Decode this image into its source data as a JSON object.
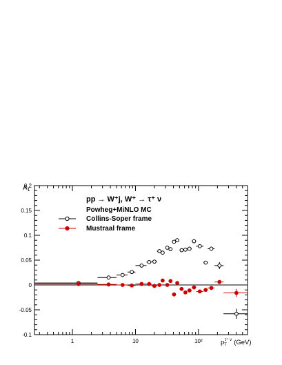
{
  "chart_data": {
    "type": "scatter",
    "x_scale": "log",
    "xlim": [
      0.25,
      600
    ],
    "ylim": [
      -0.1,
      0.2
    ],
    "ylabel_main": "A",
    "ylabel_sub": "1",
    "xlabel_main": "p",
    "xlabel_sub": "T",
    "xlabel_sup": "τ⁺ ν",
    "xlabel_unit": "(GeV)",
    "x_ticks": [
      {
        "value": 1,
        "label": "1"
      },
      {
        "value": 10,
        "label": "10"
      },
      {
        "value": 100,
        "label": "10²"
      }
    ],
    "y_ticks": [
      {
        "value": -0.1,
        "label": "-0.1"
      },
      {
        "value": -0.05,
        "label": "-0.05"
      },
      {
        "value": 0,
        "label": "0"
      },
      {
        "value": 0.05,
        "label": "0.05"
      },
      {
        "value": 0.1,
        "label": "0.1"
      },
      {
        "value": 0.15,
        "label": "0.15"
      },
      {
        "value": 0.2,
        "label": "0.2"
      }
    ],
    "process_label": "pp → W⁺j, W⁺ → τ⁺ ν",
    "generator_label": "Powheg+MiNLO MC",
    "legend_position": "top-left",
    "series": [
      {
        "name": "Collins-Soper frame",
        "color": "#000000",
        "marker": "open-circle",
        "points": [
          {
            "x": 1.25,
            "y": 0.004,
            "xlo": 0.25,
            "xhi": 2.5,
            "yerr": 0.001
          },
          {
            "x": 3.75,
            "y": 0.015,
            "xlo": 2.5,
            "xhi": 5,
            "yerr": 0.001
          },
          {
            "x": 6.25,
            "y": 0.02,
            "xlo": 5,
            "xhi": 7.5,
            "yerr": 0.001
          },
          {
            "x": 8.75,
            "y": 0.026,
            "xlo": 7.5,
            "xhi": 10,
            "yerr": 0.001
          },
          {
            "x": 12.5,
            "y": 0.039,
            "xlo": 10,
            "xhi": 15,
            "yerr": 0.002
          },
          {
            "x": 16.5,
            "y": 0.046,
            "xlo": 15,
            "xhi": 18,
            "yerr": 0.002
          },
          {
            "x": 20,
            "y": 0.047,
            "xlo": 18,
            "xhi": 22,
            "yerr": 0.002
          },
          {
            "x": 24,
            "y": 0.068,
            "xlo": 22,
            "xhi": 26,
            "yerr": 0.002
          },
          {
            "x": 27,
            "y": 0.065,
            "xlo": 26,
            "xhi": 28,
            "yerr": 0.002
          },
          {
            "x": 32,
            "y": 0.075,
            "xlo": 30,
            "xhi": 34,
            "yerr": 0.002
          },
          {
            "x": 36,
            "y": 0.072,
            "xlo": 34,
            "xhi": 38,
            "yerr": 0.002
          },
          {
            "x": 41,
            "y": 0.087,
            "xlo": 38,
            "xhi": 44,
            "yerr": 0.002
          },
          {
            "x": 46,
            "y": 0.09,
            "xlo": 44,
            "xhi": 48,
            "yerr": 0.002
          },
          {
            "x": 54,
            "y": 0.07,
            "xlo": 50,
            "xhi": 58,
            "yerr": 0.002
          },
          {
            "x": 62,
            "y": 0.071,
            "xlo": 58,
            "xhi": 66,
            "yerr": 0.002
          },
          {
            "x": 72,
            "y": 0.073,
            "xlo": 66,
            "xhi": 78,
            "yerr": 0.002
          },
          {
            "x": 85,
            "y": 0.088,
            "xlo": 78,
            "xhi": 92,
            "yerr": 0.003
          },
          {
            "x": 105,
            "y": 0.078,
            "xlo": 92,
            "xhi": 120,
            "yerr": 0.003
          },
          {
            "x": 130,
            "y": 0.045,
            "xlo": 120,
            "xhi": 140,
            "yerr": 0.003
          },
          {
            "x": 160,
            "y": 0.073,
            "xlo": 140,
            "xhi": 180,
            "yerr": 0.004
          },
          {
            "x": 215,
            "y": 0.039,
            "xlo": 180,
            "xhi": 250,
            "yerr": 0.007
          },
          {
            "x": 400,
            "y": -0.058,
            "xlo": 250,
            "xhi": 600,
            "yerr": 0.01
          }
        ]
      },
      {
        "name": "Mustraal frame",
        "color": "#cc0000",
        "marker": "filled-circle",
        "points": [
          {
            "x": 1.25,
            "y": 0.002,
            "xlo": 0.25,
            "xhi": 2.5,
            "yerr": 0.001
          },
          {
            "x": 3.75,
            "y": 0.001,
            "xlo": 2.5,
            "xhi": 5,
            "yerr": 0.001
          },
          {
            "x": 6.25,
            "y": 0.0,
            "xlo": 5,
            "xhi": 7.5,
            "yerr": 0.001
          },
          {
            "x": 8.75,
            "y": -0.001,
            "xlo": 7.5,
            "xhi": 10,
            "yerr": 0.001
          },
          {
            "x": 12.5,
            "y": 0.002,
            "xlo": 10,
            "xhi": 15,
            "yerr": 0.002
          },
          {
            "x": 16.5,
            "y": 0.002,
            "xlo": 15,
            "xhi": 18,
            "yerr": 0.002
          },
          {
            "x": 20,
            "y": -0.002,
            "xlo": 18,
            "xhi": 22,
            "yerr": 0.002
          },
          {
            "x": 24,
            "y": 0.0,
            "xlo": 22,
            "xhi": 26,
            "yerr": 0.002
          },
          {
            "x": 27,
            "y": 0.009,
            "xlo": 26,
            "xhi": 28,
            "yerr": 0.002
          },
          {
            "x": 32,
            "y": 0.0,
            "xlo": 30,
            "xhi": 34,
            "yerr": 0.002
          },
          {
            "x": 36,
            "y": 0.008,
            "xlo": 34,
            "xhi": 38,
            "yerr": 0.002
          },
          {
            "x": 41,
            "y": -0.019,
            "xlo": 38,
            "xhi": 44,
            "yerr": 0.002
          },
          {
            "x": 46,
            "y": 0.004,
            "xlo": 44,
            "xhi": 48,
            "yerr": 0.002
          },
          {
            "x": 54,
            "y": -0.008,
            "xlo": 50,
            "xhi": 58,
            "yerr": 0.002
          },
          {
            "x": 62,
            "y": -0.015,
            "xlo": 58,
            "xhi": 66,
            "yerr": 0.002
          },
          {
            "x": 72,
            "y": -0.011,
            "xlo": 66,
            "xhi": 78,
            "yerr": 0.002
          },
          {
            "x": 85,
            "y": -0.005,
            "xlo": 78,
            "xhi": 92,
            "yerr": 0.003
          },
          {
            "x": 105,
            "y": -0.013,
            "xlo": 92,
            "xhi": 120,
            "yerr": 0.003
          },
          {
            "x": 130,
            "y": -0.01,
            "xlo": 120,
            "xhi": 140,
            "yerr": 0.003
          },
          {
            "x": 160,
            "y": -0.006,
            "xlo": 140,
            "xhi": 180,
            "yerr": 0.004
          },
          {
            "x": 215,
            "y": 0.006,
            "xlo": 180,
            "xhi": 250,
            "yerr": 0.004
          },
          {
            "x": 400,
            "y": -0.016,
            "xlo": 250,
            "xhi": 600,
            "yerr": 0.008
          }
        ]
      }
    ]
  }
}
